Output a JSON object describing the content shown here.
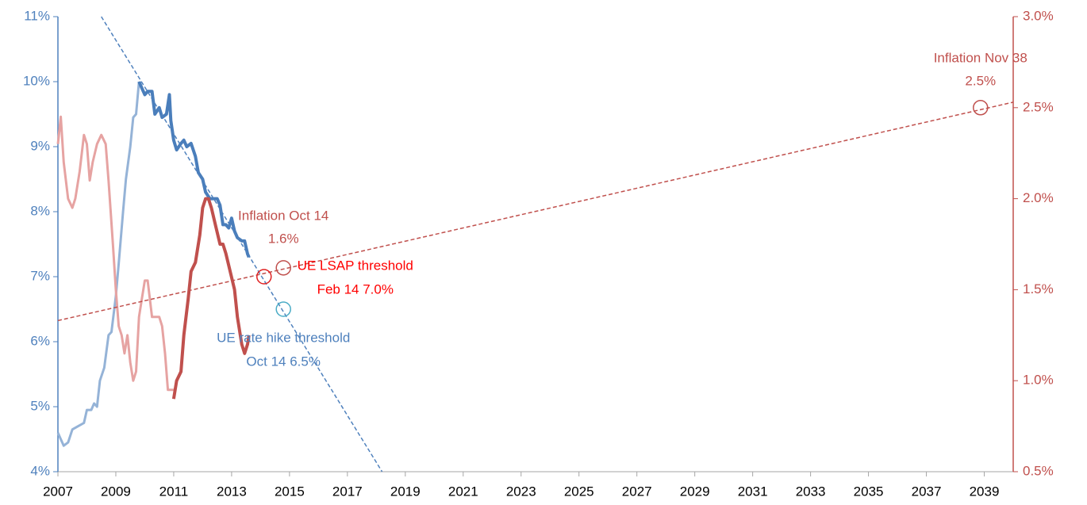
{
  "chart_data": {
    "type": "line",
    "xlim": [
      2007,
      2040
    ],
    "xticks": [
      2007,
      2009,
      2011,
      2013,
      2015,
      2017,
      2019,
      2021,
      2023,
      2025,
      2027,
      2029,
      2031,
      2033,
      2035,
      2037,
      2039
    ],
    "ylim": [
      4,
      11
    ],
    "yticks": [
      {
        "value": 4,
        "label": "4%"
      },
      {
        "value": 5,
        "label": "5%"
      },
      {
        "value": 6,
        "label": "6%"
      },
      {
        "value": 7,
        "label": "7%"
      },
      {
        "value": 8,
        "label": "8%"
      },
      {
        "value": 9,
        "label": "9%"
      },
      {
        "value": 10,
        "label": "10%"
      },
      {
        "value": 11,
        "label": "11%"
      }
    ],
    "y2lim": [
      0.5,
      3.0
    ],
    "y2ticks": [
      {
        "value": 0.5,
        "label": "0.5%"
      },
      {
        "value": 1.0,
        "label": "1.0%"
      },
      {
        "value": 1.5,
        "label": "1.5%"
      },
      {
        "value": 2.0,
        "label": "2.0%"
      },
      {
        "value": 2.5,
        "label": "2.5%"
      },
      {
        "value": 3.0,
        "label": "3.0%"
      }
    ],
    "y_color": "#4f81bd",
    "y2_color": "#c0504d",
    "series": [
      {
        "axis": "y",
        "color": "#95b3d7",
        "width": 3,
        "dashed": false,
        "x": [
          2007.0,
          2007.1,
          2007.2,
          2007.35,
          2007.5,
          2007.7,
          2007.9,
          2008.0,
          2008.15,
          2008.25,
          2008.35,
          2008.45,
          2008.6,
          2008.75,
          2008.85,
          2009.0,
          2009.1,
          2009.25,
          2009.35,
          2009.5,
          2009.6,
          2009.7,
          2009.8
        ],
        "values": [
          4.6,
          4.5,
          4.4,
          4.45,
          4.65,
          4.7,
          4.75,
          4.95,
          4.95,
          5.05,
          5.0,
          5.4,
          5.6,
          6.1,
          6.15,
          6.7,
          7.2,
          8.0,
          8.5,
          9.0,
          9.45,
          9.5,
          10.0
        ]
      },
      {
        "axis": "y",
        "color": "#4a7ebb",
        "width": 4,
        "dashed": false,
        "x": [
          2009.8,
          2009.9,
          2010.0,
          2010.1,
          2010.25,
          2010.35,
          2010.5,
          2010.6,
          2010.75,
          2010.85,
          2010.9,
          2011.0,
          2011.1,
          2011.25,
          2011.35,
          2011.45,
          2011.6,
          2011.75,
          2011.85,
          2012.0,
          2012.1,
          2012.25,
          2012.4,
          2012.5,
          2012.6,
          2012.7,
          2012.8,
          2012.9,
          2013.0,
          2013.1,
          2013.2,
          2013.35,
          2013.45,
          2013.55,
          2013.6
        ],
        "values": [
          10.0,
          9.9,
          9.8,
          9.85,
          9.85,
          9.5,
          9.6,
          9.45,
          9.5,
          9.8,
          9.4,
          9.1,
          8.95,
          9.05,
          9.1,
          9.0,
          9.05,
          8.85,
          8.6,
          8.5,
          8.3,
          8.2,
          8.2,
          8.2,
          8.1,
          7.8,
          7.8,
          7.75,
          7.9,
          7.7,
          7.6,
          7.55,
          7.55,
          7.35,
          7.3
        ]
      },
      {
        "axis": "y2",
        "color": "#e6a3a2",
        "width": 3,
        "dashed": false,
        "x": [
          2007.0,
          2007.1,
          2007.2,
          2007.35,
          2007.5,
          2007.6,
          2007.75,
          2007.9,
          2008.0,
          2008.1,
          2008.2,
          2008.35,
          2008.5,
          2008.65,
          2008.75,
          2008.9,
          2009.0,
          2009.1,
          2009.2,
          2009.3,
          2009.4,
          2009.5,
          2009.6,
          2009.7,
          2009.8,
          2009.9,
          2010.0,
          2010.1,
          2010.25,
          2010.35,
          2010.5,
          2010.6,
          2010.7,
          2010.8,
          2010.9,
          2011.0
        ],
        "values": [
          2.3,
          2.45,
          2.2,
          2.0,
          1.95,
          2.0,
          2.15,
          2.35,
          2.3,
          2.1,
          2.2,
          2.3,
          2.35,
          2.3,
          2.1,
          1.75,
          1.5,
          1.3,
          1.25,
          1.15,
          1.25,
          1.1,
          1.0,
          1.05,
          1.35,
          1.45,
          1.55,
          1.55,
          1.35,
          1.35,
          1.35,
          1.3,
          1.15,
          0.95,
          0.95,
          0.95
        ]
      },
      {
        "axis": "y2",
        "color": "#c0504d",
        "width": 4,
        "dashed": false,
        "x": [
          2011.0,
          2011.1,
          2011.25,
          2011.35,
          2011.5,
          2011.6,
          2011.75,
          2011.9,
          2012.0,
          2012.1,
          2012.2,
          2012.3,
          2012.45,
          2012.6,
          2012.7,
          2012.8,
          2012.95,
          2013.1,
          2013.2,
          2013.35,
          2013.45,
          2013.55,
          2013.6
        ],
        "values": [
          0.9,
          1.0,
          1.05,
          1.25,
          1.45,
          1.6,
          1.65,
          1.8,
          1.95,
          2.0,
          2.0,
          1.95,
          1.85,
          1.75,
          1.75,
          1.7,
          1.6,
          1.5,
          1.35,
          1.2,
          1.15,
          1.2,
          1.25
        ]
      },
      {
        "axis": "y",
        "color": "#4f81bd",
        "width": 1.5,
        "dashed": true,
        "x": [
          2008.5,
          2018.2
        ],
        "values": [
          11,
          4
        ]
      },
      {
        "axis": "y2",
        "color": "#c0504d",
        "width": 1.5,
        "dashed": true,
        "x": [
          2007.0,
          2040.0
        ],
        "values": [
          1.33,
          2.53
        ]
      }
    ],
    "annotations": [
      {
        "x": 2014.79,
        "y": 6.5,
        "axis": "y",
        "marker_color": "#4bacc6",
        "text_color": "#4f81bd",
        "lines": [
          "UE rate hike threshold",
          "Oct 14 6.5%"
        ]
      },
      {
        "x": 2014.12,
        "y": 7.0,
        "axis": "y",
        "marker_color": "#e02020",
        "text_color": "#ff0000",
        "lines": [
          "UE LSAP threshold",
          "Feb 14 7.0%"
        ]
      },
      {
        "x": 2014.79,
        "y": 1.62,
        "axis": "y2",
        "marker_color": "#c0504d",
        "text_color": "#c0504d",
        "lines": [
          "Inflation Oct 14",
          "1.6%"
        ]
      },
      {
        "x": 2038.87,
        "y": 2.5,
        "axis": "y2",
        "marker_color": "#c0504d",
        "text_color": "#c0504d",
        "lines": [
          "Inflation Nov 38",
          "2.5%"
        ]
      }
    ]
  }
}
